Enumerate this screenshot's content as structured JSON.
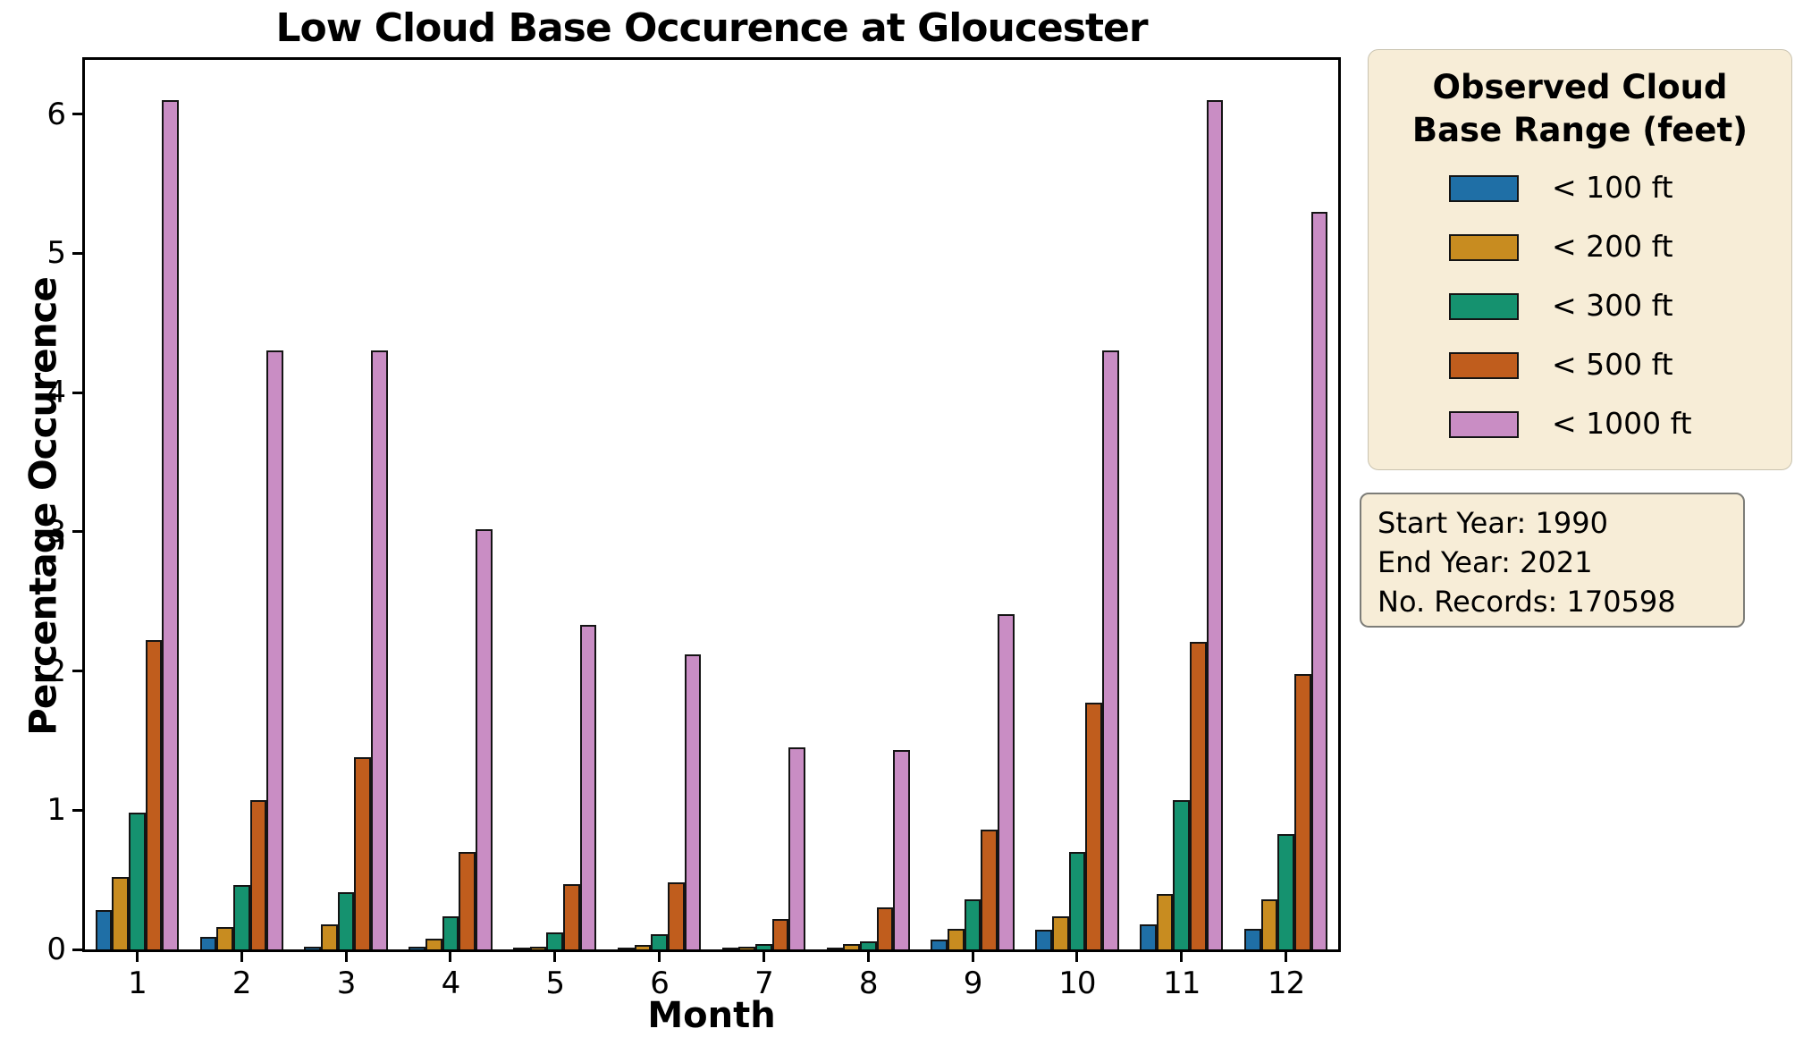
{
  "title": "Low Cloud Base Occurence at Gloucester",
  "axes": {
    "x_label": "Month",
    "y_label": "Percentage Occurence"
  },
  "chart_data": {
    "type": "bar",
    "title": "Low Cloud Base Occurence at Gloucester",
    "xlabel": "Month",
    "ylabel": "Percentage Occurence",
    "categories": [
      "1",
      "2",
      "3",
      "4",
      "5",
      "6",
      "7",
      "8",
      "9",
      "10",
      "11",
      "12"
    ],
    "series": [
      {
        "name": "< 100 ft",
        "color": "#1f6fa6",
        "values": [
          0.28,
          0.09,
          0.02,
          0.02,
          0.01,
          0.01,
          0.01,
          0.01,
          0.07,
          0.14,
          0.18,
          0.15
        ]
      },
      {
        "name": "< 200 ft",
        "color": "#c88c20",
        "values": [
          0.52,
          0.16,
          0.18,
          0.08,
          0.02,
          0.03,
          0.02,
          0.04,
          0.15,
          0.24,
          0.4,
          0.36
        ]
      },
      {
        "name": "< 300 ft",
        "color": "#15926f",
        "values": [
          0.98,
          0.46,
          0.41,
          0.24,
          0.12,
          0.11,
          0.04,
          0.06,
          0.36,
          0.7,
          1.07,
          0.83
        ]
      },
      {
        "name": "< 500 ft",
        "color": "#c05d1d",
        "values": [
          2.22,
          1.07,
          1.38,
          0.7,
          0.47,
          0.48,
          0.22,
          0.3,
          0.86,
          1.77,
          2.21,
          1.98
        ]
      },
      {
        "name": "< 1000 ft",
        "color": "#c98dc4",
        "values": [
          6.1,
          4.3,
          4.3,
          3.02,
          2.33,
          2.12,
          1.45,
          1.43,
          2.41,
          4.3,
          6.1,
          5.3
        ]
      }
    ],
    "y_ticks": [
      0,
      1,
      2,
      3,
      4,
      5,
      6
    ],
    "ylim": [
      0,
      6.39
    ],
    "grid": false,
    "legend_position": "outside-right",
    "bar_edge_color": "#141414",
    "group_width_fraction": 0.8
  },
  "legend": {
    "title_line1": "Observed Cloud",
    "title_line2": "Base Range (feet)",
    "background": "#f7edd7"
  },
  "info_box": {
    "lines": [
      "Start Year: 1990",
      "End Year: 2021",
      "No. Records: 170598"
    ],
    "background": "#f7edd7"
  },
  "colors": {
    "figure_background": "#ffffff",
    "axis": "#000000",
    "panel_background": "#f7edd7"
  }
}
